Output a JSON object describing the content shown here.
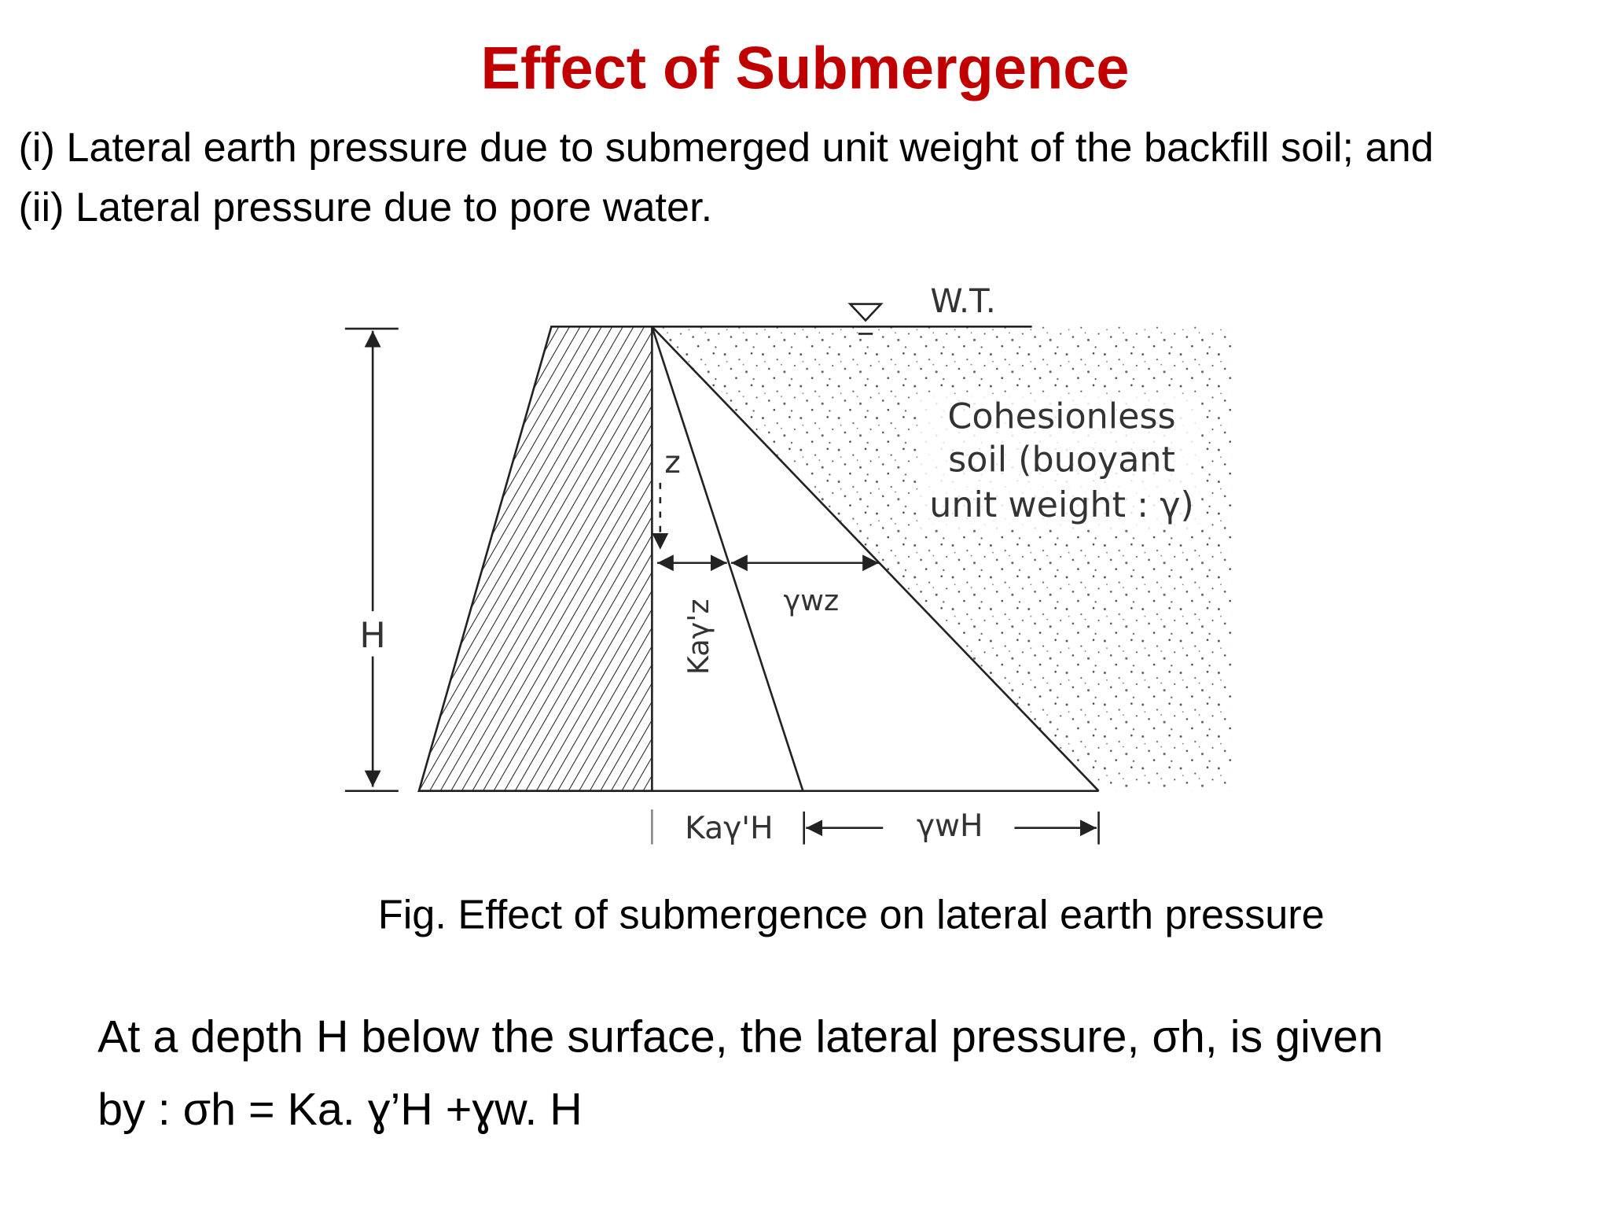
{
  "header": {
    "title": "Effect of Submergence"
  },
  "intro": {
    "lines": [
      "(i) Lateral earth pressure due to submerged unit weight of the backfill soil; and",
      "(ii) Lateral pressure due to pore water."
    ]
  },
  "figure": {
    "labels": {
      "water_table": "W.T.",
      "soil": [
        "Cohesionless",
        "soil (buoyant",
        "unit weight : γ)"
      ],
      "depth": "z",
      "height": "H",
      "soil_pressure_z": "Kaγ'z",
      "water_pressure_z": "γwz",
      "soil_pressure_h": "Kaγ'H",
      "water_pressure_h": "γwH"
    },
    "caption": "Fig. Effect of submergence on lateral earth pressure"
  },
  "conclusion": {
    "lines": [
      "At a depth H below the surface, the lateral pressure, σh, is given",
      "by : σh = Ka. ɣ’H +ɣw. H"
    ]
  }
}
